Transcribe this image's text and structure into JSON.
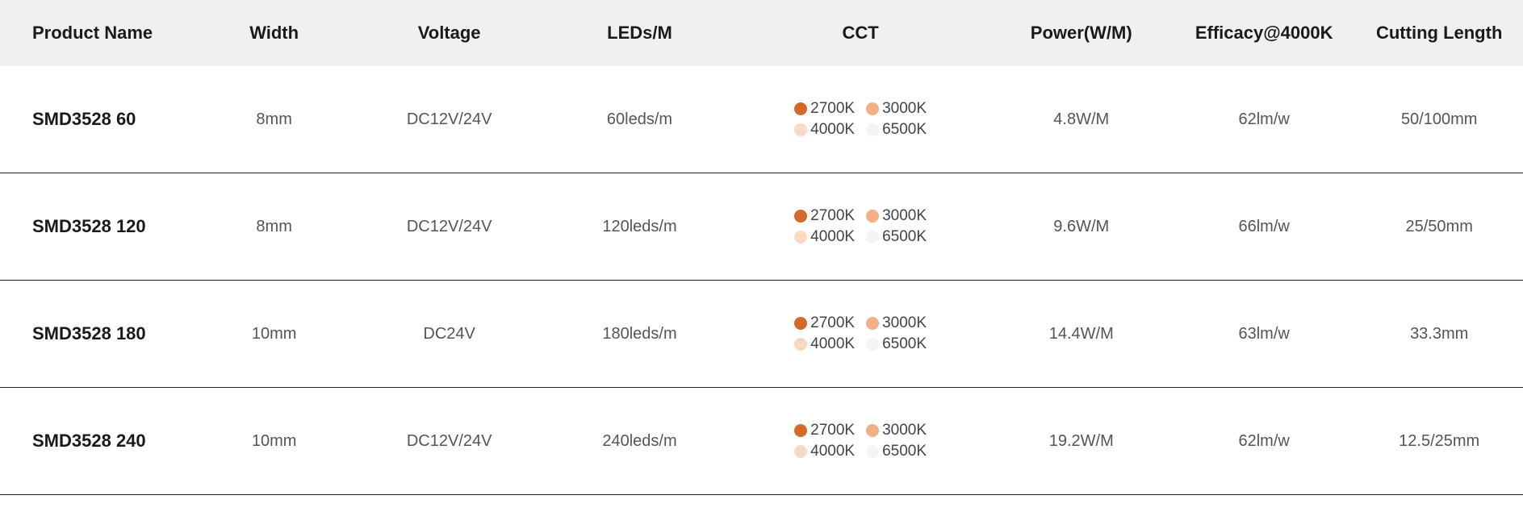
{
  "table": {
    "type": "table",
    "background_color": "#ffffff",
    "header_background": "#f0f0f0",
    "row_border_color": "#222222",
    "row_border_width": 1,
    "header_font_size": 22,
    "header_font_weight": 700,
    "header_color": "#1a1a1a",
    "cell_font_size": 20,
    "cell_color": "#555555",
    "product_col_font_weight": 700,
    "product_col_color": "#1a1a1a",
    "column_widths_pct": [
      13,
      10,
      13,
      12,
      17,
      12,
      12,
      11
    ],
    "columns": [
      "Product Name",
      "Width",
      "Voltage",
      "LEDs/M",
      "CCT",
      "Power(W/M)",
      "Efficacy@4000K",
      "Cutting Length"
    ],
    "cct_swatch_size": 16,
    "cct_options": [
      {
        "label": "2700K",
        "color": "#d46a2a"
      },
      {
        "label": "3000K",
        "color": "#f1b184"
      },
      {
        "label": "4000K",
        "color": "#fad9c2"
      },
      {
        "label": "6500K",
        "color": "#f4f4f4"
      }
    ],
    "rows": [
      {
        "product": "SMD3528 60",
        "width": "8mm",
        "voltage": "DC12V/24V",
        "leds": "60leds/m",
        "power": "4.8W/M",
        "efficacy": "62lm/w",
        "cutting": "50/100mm"
      },
      {
        "product": "SMD3528 120",
        "width": "8mm",
        "voltage": "DC12V/24V",
        "leds": "120leds/m",
        "power": "9.6W/M",
        "efficacy": "66lm/w",
        "cutting": "25/50mm"
      },
      {
        "product": "SMD3528 180",
        "width": "10mm",
        "voltage": "DC24V",
        "leds": "180leds/m",
        "power": "14.4W/M",
        "efficacy": "63lm/w",
        "cutting": "33.3mm"
      },
      {
        "product": "SMD3528 240",
        "width": "10mm",
        "voltage": "DC12V/24V",
        "leds": "240leds/m",
        "power": "19.2W/M",
        "efficacy": "62lm/w",
        "cutting": "12.5/25mm"
      }
    ]
  }
}
